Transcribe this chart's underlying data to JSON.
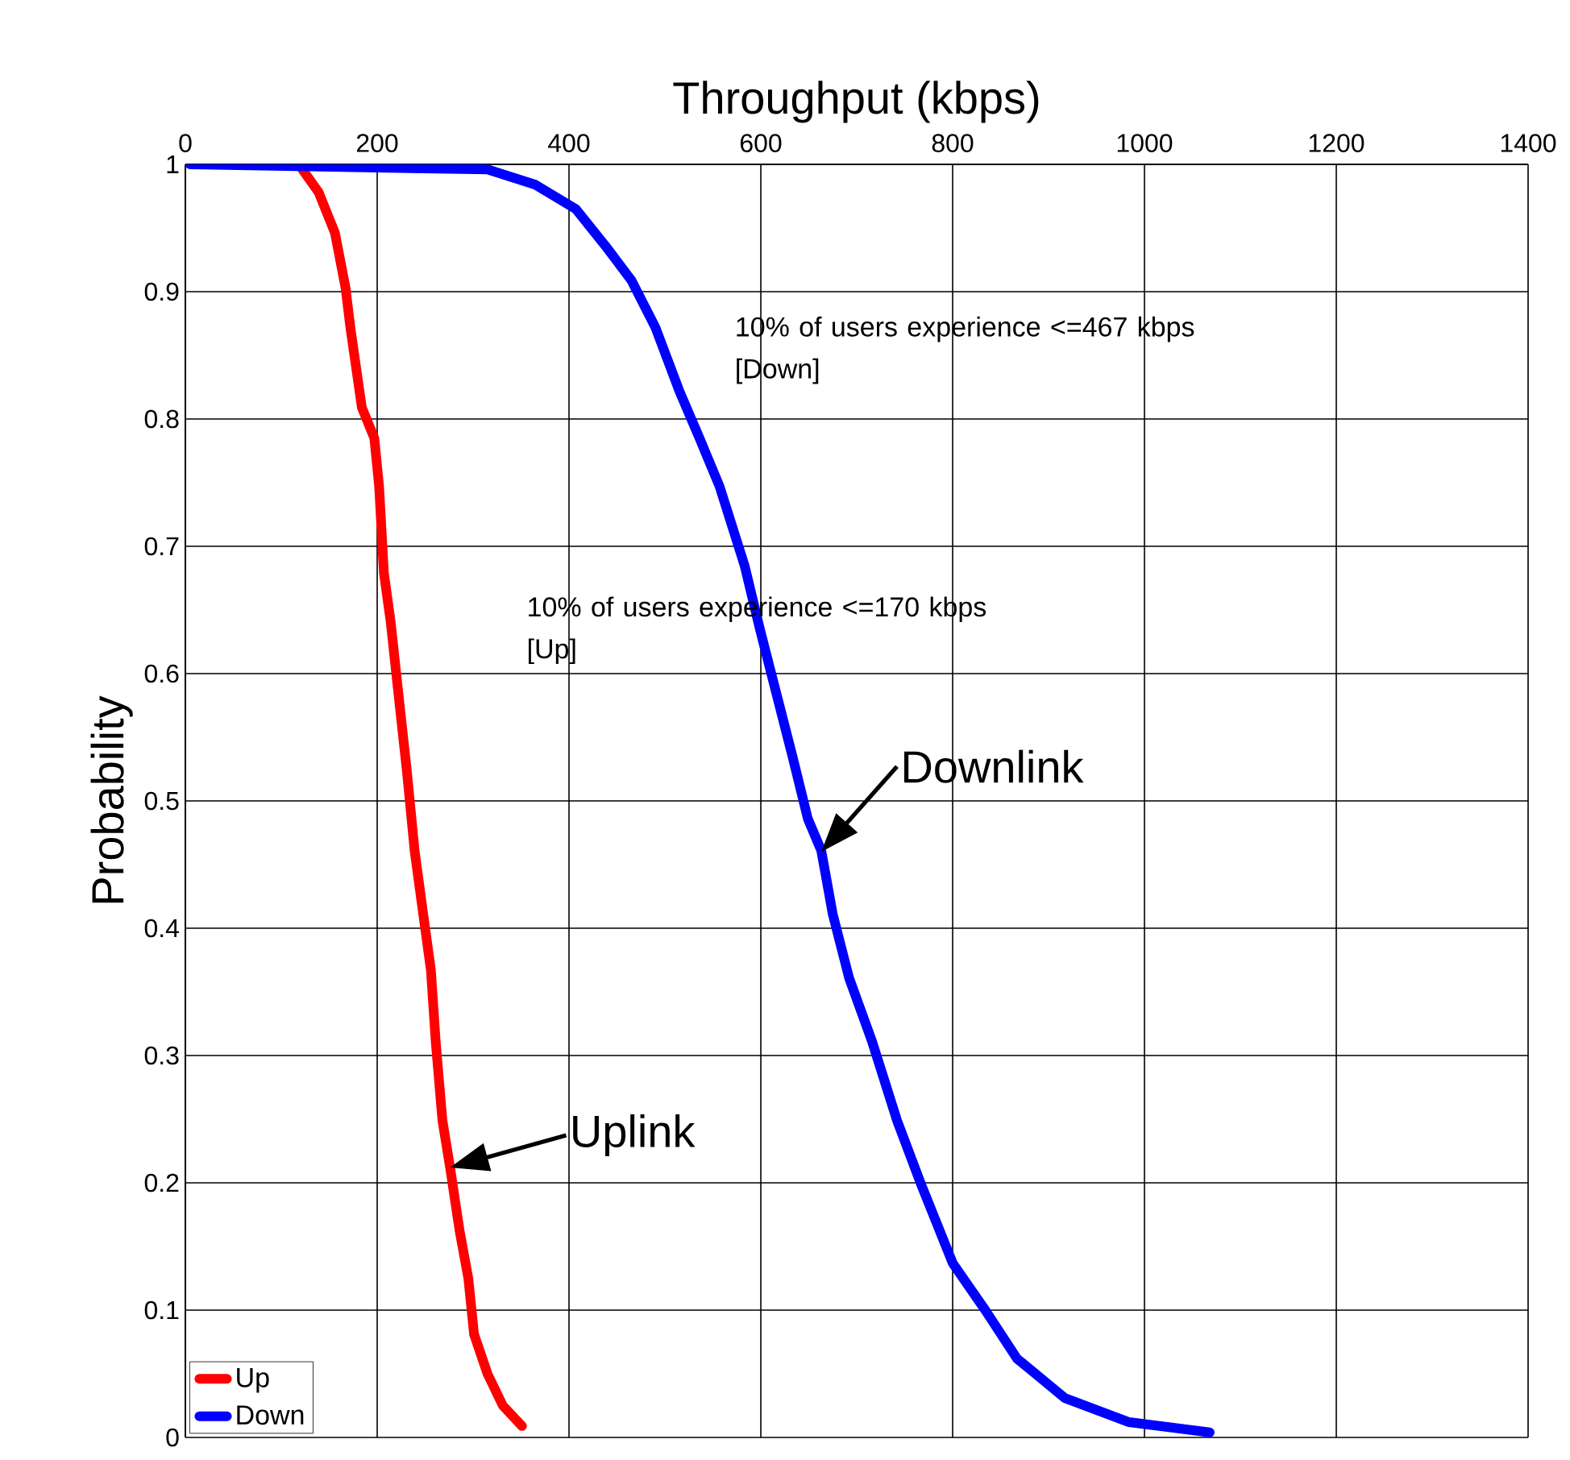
{
  "chart_data": {
    "type": "line",
    "xlabel": "Throughput (kbps)",
    "ylabel": "Probability",
    "xlim": [
      0,
      1400
    ],
    "xticks": [
      0,
      200,
      400,
      600,
      800,
      1000,
      1200,
      1400
    ],
    "ylim": [
      0,
      1
    ],
    "yticks": [
      0,
      0.1,
      0.2,
      0.3,
      0.4,
      0.5,
      0.6,
      0.7,
      0.8,
      0.9,
      1
    ],
    "grid": true,
    "legend": "bottom left",
    "marker": "none",
    "line_style": "solid",
    "series": [
      {
        "name": "Up",
        "color": "#ff0000",
        "x": [
          122,
          139,
          156,
          167,
          172,
          184,
          197,
          202,
          207,
          214,
          222,
          231,
          239,
          248,
          256,
          261,
          268,
          276,
          286,
          295,
          301,
          315,
          331,
          351
        ],
        "values": [
          0.996,
          0.978,
          0.946,
          0.903,
          0.872,
          0.809,
          0.785,
          0.747,
          0.679,
          0.641,
          0.585,
          0.523,
          0.461,
          0.411,
          0.367,
          0.311,
          0.249,
          0.212,
          0.162,
          0.125,
          0.081,
          0.05,
          0.025,
          0.009
        ]
      },
      {
        "name": "Down",
        "color": "#0000ff",
        "x": [
          5,
          315,
          365,
          407,
          440,
          465,
          490,
          515,
          536,
          557,
          583,
          599,
          616,
          633,
          649,
          663,
          675,
          692,
          716,
          742,
          767,
          800,
          834,
          867,
          917,
          984,
          1068
        ],
        "values": [
          1.0,
          0.996,
          0.984,
          0.965,
          0.934,
          0.909,
          0.872,
          0.822,
          0.785,
          0.747,
          0.685,
          0.635,
          0.585,
          0.535,
          0.486,
          0.461,
          0.411,
          0.361,
          0.311,
          0.249,
          0.199,
          0.137,
          0.1,
          0.062,
          0.031,
          0.012,
          0.004
        ]
      }
    ],
    "annotations": [
      "10% of users experience <=467 kbps [Down]",
      "10% of users experience <=170 kbps [Up]",
      {
        "text": "Downlink",
        "x": 663,
        "y": 0.46
      },
      {
        "text": "Uplink",
        "x": 276,
        "y": 0.212
      }
    ]
  }
}
